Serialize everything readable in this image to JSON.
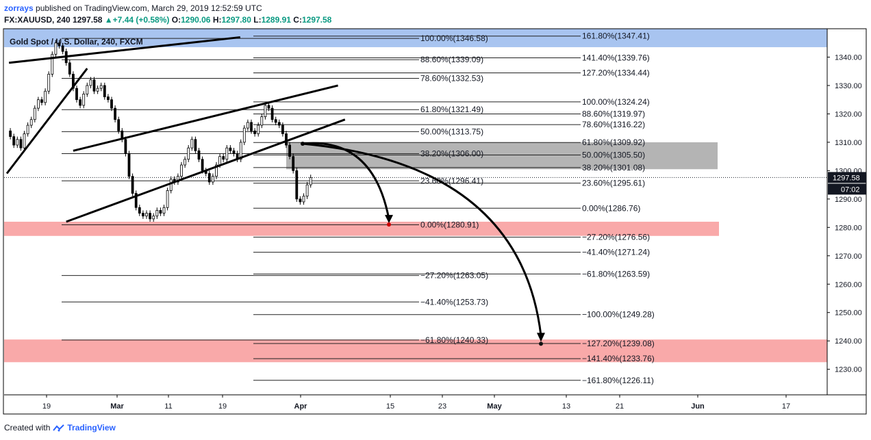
{
  "header": {
    "username": "zorrays",
    "published_text": "published on TradingView.com, March 29, 2019 12:52:59 UTC",
    "symbol": "FX:XAUUSD, 240",
    "last": "1297.58",
    "change_arrow": "▲",
    "change": "+7.44 (+0.58%)",
    "o_label": "O:",
    "o_value": "1290.06",
    "h_label": "H:",
    "h_value": "1297.80",
    "l_label": "L:",
    "l_value": "1289.91",
    "c_label": "C:",
    "c_value": "1297.58"
  },
  "footer": {
    "created_with": "Created with",
    "brand": "TradingView"
  },
  "chart_data": {
    "type": "candlestick",
    "instrument_label": "Gold Spot / U.S. Dollar, 240, FXCM",
    "current_price_label": "1297.58",
    "countdown_label": "07:02",
    "ylim": [
      1221,
      1350
    ],
    "y_ticks": [
      {
        "value": 1230,
        "label": "1230.00"
      },
      {
        "value": 1240,
        "label": "1240.00"
      },
      {
        "value": 1250,
        "label": "1250.00"
      },
      {
        "value": 1260,
        "label": "1260.00"
      },
      {
        "value": 1270,
        "label": "1270.00"
      },
      {
        "value": 1280,
        "label": "1280.00"
      },
      {
        "value": 1290,
        "label": "1290.00"
      },
      {
        "value": 1300,
        "label": "1300.00"
      },
      {
        "value": 1310,
        "label": "1310.00"
      },
      {
        "value": 1320,
        "label": "1320.00"
      },
      {
        "value": 1330,
        "label": "1330.00"
      },
      {
        "value": 1340,
        "label": "1340.00"
      }
    ],
    "x_ticks": [
      "19",
      "Mar",
      "11",
      "19",
      "Apr",
      "15",
      "23",
      "May",
      "13",
      "21",
      "Jun",
      "17"
    ],
    "zones": [
      {
        "from": 1343.5,
        "to": 1350,
        "color": "#a8c4f0"
      },
      {
        "from": 1300.5,
        "to": 1310,
        "color": "#b4b4b4"
      },
      {
        "from": 1277,
        "to": 1282,
        "color": "#f9a9a9"
      },
      {
        "from": 1232.5,
        "to": 1240.5,
        "color": "#f9a9a9"
      }
    ],
    "fib_set_a": [
      {
        "value": 1346.58,
        "label": "100.00%(1346.58)"
      },
      {
        "value": 1339.09,
        "label": "88.60%(1339.09)"
      },
      {
        "value": 1332.53,
        "label": "78.60%(1332.53)"
      },
      {
        "value": 1321.49,
        "label": "61.80%(1321.49)"
      },
      {
        "value": 1313.75,
        "label": "50.00%(1313.75)"
      },
      {
        "value": 1306.0,
        "label": "38.20%(1306.00)"
      },
      {
        "value": 1296.41,
        "label": "23.60%(1296.41)"
      },
      {
        "value": 1280.91,
        "label": "0.00%(1280.91)"
      },
      {
        "value": 1263.05,
        "label": "−27.20%(1263.05)"
      },
      {
        "value": 1253.73,
        "label": "−41.40%(1253.73)"
      },
      {
        "value": 1240.33,
        "label": "−61.80%(1240.33)"
      }
    ],
    "fib_set_b": [
      {
        "value": 1347.41,
        "label": "161.80%(1347.41)"
      },
      {
        "value": 1339.76,
        "label": "141.40%(1339.76)"
      },
      {
        "value": 1334.44,
        "label": "127.20%(1334.44)"
      },
      {
        "value": 1324.24,
        "label": "100.00%(1324.24)"
      },
      {
        "value": 1319.97,
        "label": "88.60%(1319.97)"
      },
      {
        "value": 1316.22,
        "label": "78.60%(1316.22)"
      },
      {
        "value": 1309.92,
        "label": "61.80%(1309.92)"
      },
      {
        "value": 1305.5,
        "label": "50.00%(1305.50)"
      },
      {
        "value": 1301.08,
        "label": "38.20%(1301.08)"
      },
      {
        "value": 1295.61,
        "label": "23.60%(1295.61)"
      },
      {
        "value": 1286.76,
        "label": "0.00%(1286.76)"
      },
      {
        "value": 1276.56,
        "label": "−27.20%(1276.56)"
      },
      {
        "value": 1271.24,
        "label": "−41.40%(1271.24)"
      },
      {
        "value": 1263.59,
        "label": "−61.80%(1263.59)"
      },
      {
        "value": 1249.28,
        "label": "−100.00%(1249.28)"
      },
      {
        "value": 1239.08,
        "label": "−127.20%(1239.08)"
      },
      {
        "value": 1233.76,
        "label": "−141.40%(1233.76)"
      },
      {
        "value": 1226.11,
        "label": "−161.80%(1226.11)"
      }
    ],
    "price_path": [
      1314,
      1312,
      1309,
      1311,
      1308,
      1313,
      1316,
      1318,
      1322,
      1325,
      1324,
      1328,
      1334,
      1341,
      1345,
      1344,
      1342,
      1338,
      1334,
      1329,
      1325,
      1323,
      1327,
      1330,
      1332,
      1328,
      1329,
      1330,
      1326,
      1325,
      1322,
      1318,
      1314,
      1311,
      1306,
      1298,
      1292,
      1287,
      1285,
      1284,
      1285,
      1283,
      1284,
      1286,
      1285,
      1287,
      1293,
      1297,
      1296,
      1298,
      1302,
      1304,
      1308,
      1311,
      1307,
      1304,
      1300,
      1299,
      1296,
      1298,
      1302,
      1305,
      1304,
      1308,
      1307,
      1306,
      1304,
      1310,
      1315,
      1317,
      1314,
      1313,
      1316,
      1319,
      1323,
      1322,
      1318,
      1317,
      1316,
      1313,
      1309,
      1305,
      1300,
      1290,
      1289,
      1291,
      1295,
      1297.58
    ],
    "trend_lines": [
      {
        "points": [
          [
            1,
            1338
          ],
          [
            8,
            1347
          ]
        ]
      },
      {
        "points": [
          [
            0,
            1299
          ],
          [
            23,
            1336
          ]
        ]
      },
      {
        "points": [
          [
            17,
            1282
          ],
          [
            38,
            1318
          ]
        ]
      },
      {
        "points": [
          [
            19,
            1307
          ],
          [
            36,
            1330
          ]
        ]
      }
    ]
  }
}
